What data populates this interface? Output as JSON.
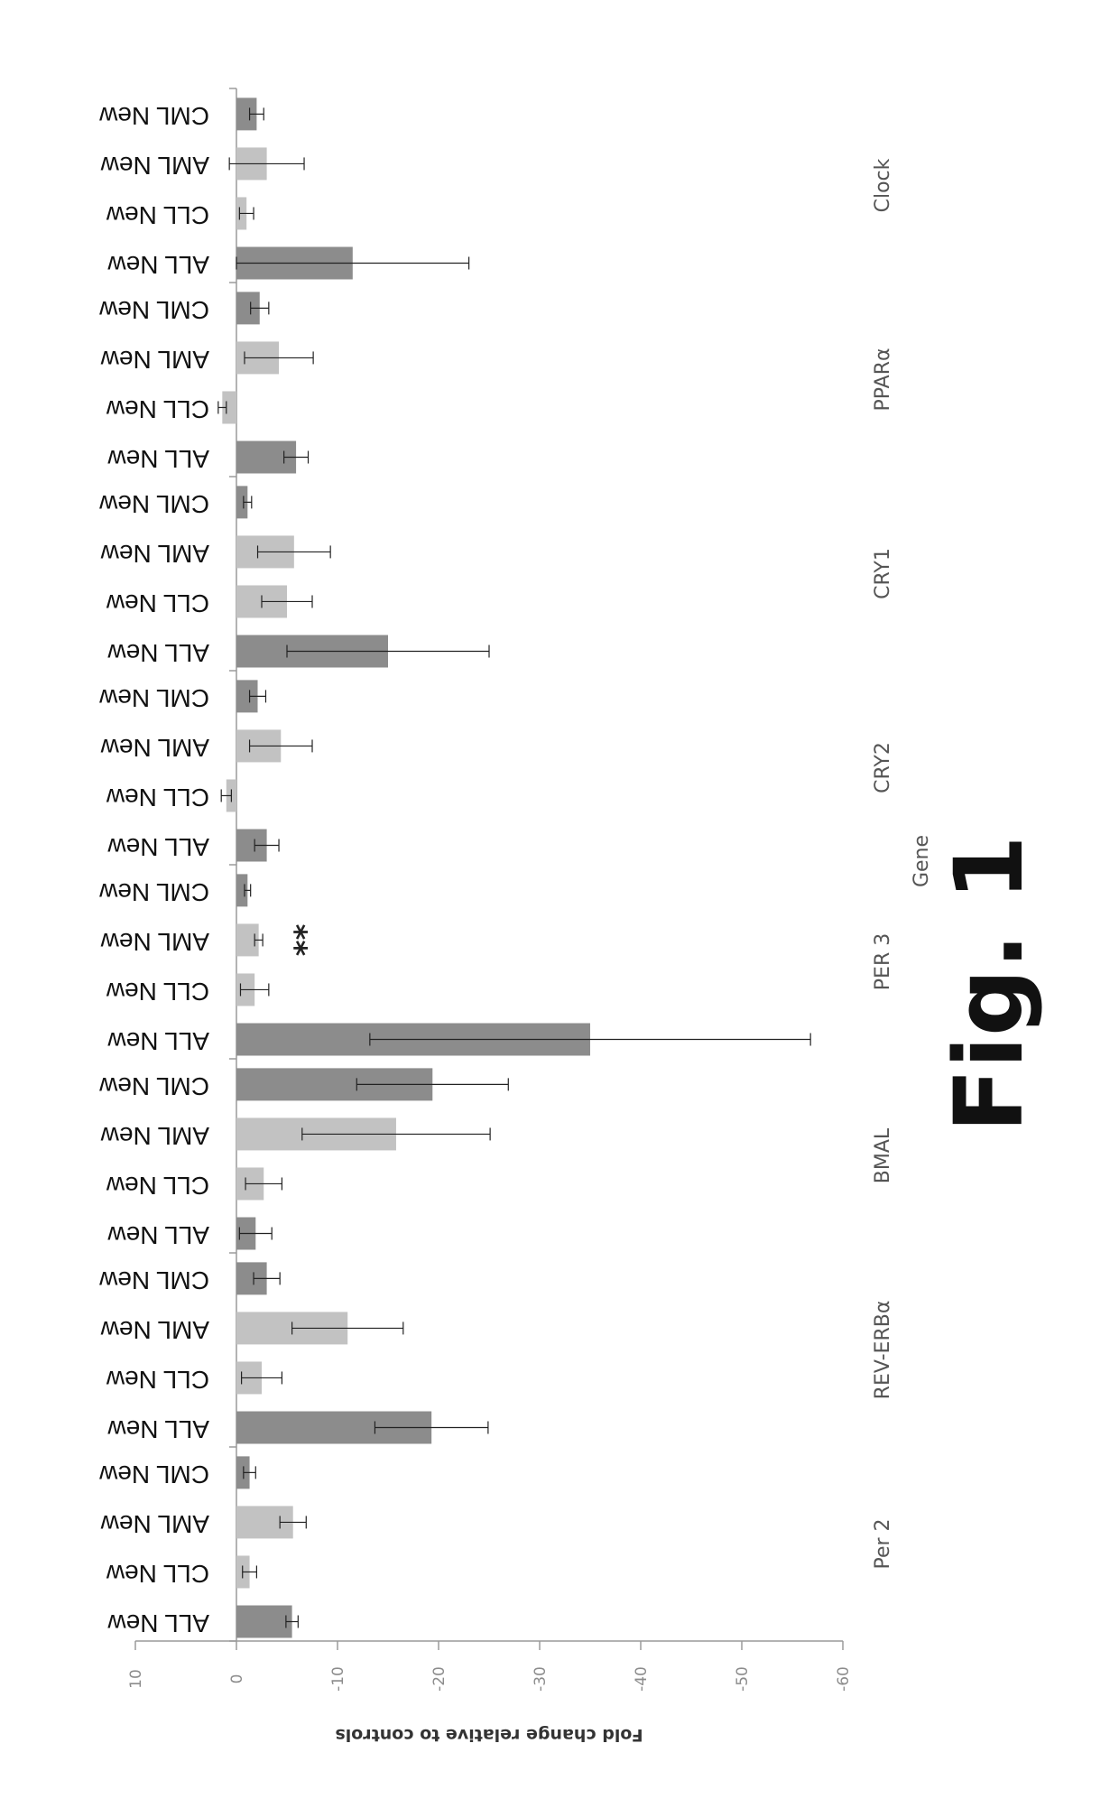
{
  "figure_label": "Fig. 1",
  "colors": {
    "dark_bar": "#8c8c8c",
    "light_bar": "#c2c2c2",
    "axis": "#9a9a9a",
    "text": "#111111"
  },
  "chart_data": {
    "type": "bar",
    "orientation": "horizontal",
    "rotated_page": true,
    "xlabel": "Gene",
    "ylabel": "Fold change relative to controls",
    "ylim": [
      -60,
      10
    ],
    "y_ticks": [
      "10",
      "0",
      "-10",
      "-20",
      "-30",
      "-40",
      "-50",
      "-60"
    ],
    "grid": false,
    "categories": [
      "Per 2",
      "REV-ERBα",
      "BMAL",
      "PER 3",
      "CRY2",
      "CRY1",
      "PPARα",
      "Clock"
    ],
    "series": [
      {
        "name": "ALL New",
        "values": [
          -5.5,
          -19.3,
          -1.9,
          -35.0,
          -3.0,
          -15.0,
          -5.9,
          -11.5
        ],
        "errors": [
          0.6,
          5.6,
          1.6,
          21.8,
          1.2,
          10.0,
          1.2,
          11.5
        ]
      },
      {
        "name": "CLL New",
        "values": [
          -1.3,
          -2.5,
          -2.7,
          -1.8,
          1.0,
          -5.0,
          1.4,
          -1.0
        ],
        "errors": [
          0.7,
          2.0,
          1.8,
          1.4,
          0.5,
          2.5,
          0.4,
          0.7
        ]
      },
      {
        "name": "AML New",
        "values": [
          -5.6,
          -11.0,
          -15.8,
          -2.2,
          -4.4,
          -5.7,
          -4.2,
          -3.0
        ],
        "errors": [
          1.3,
          5.5,
          9.3,
          0.4,
          3.1,
          3.6,
          3.4,
          3.7
        ]
      },
      {
        "name": "CML New",
        "values": [
          -1.3,
          -3.0,
          -19.4,
          -1.1,
          -2.1,
          -1.1,
          -2.3,
          -2.0
        ],
        "errors": [
          0.6,
          1.3,
          7.5,
          0.3,
          0.8,
          0.4,
          0.9,
          0.7
        ]
      }
    ],
    "annotations": [
      {
        "text": "**",
        "category": "PER 3",
        "series": "AML New"
      }
    ]
  }
}
